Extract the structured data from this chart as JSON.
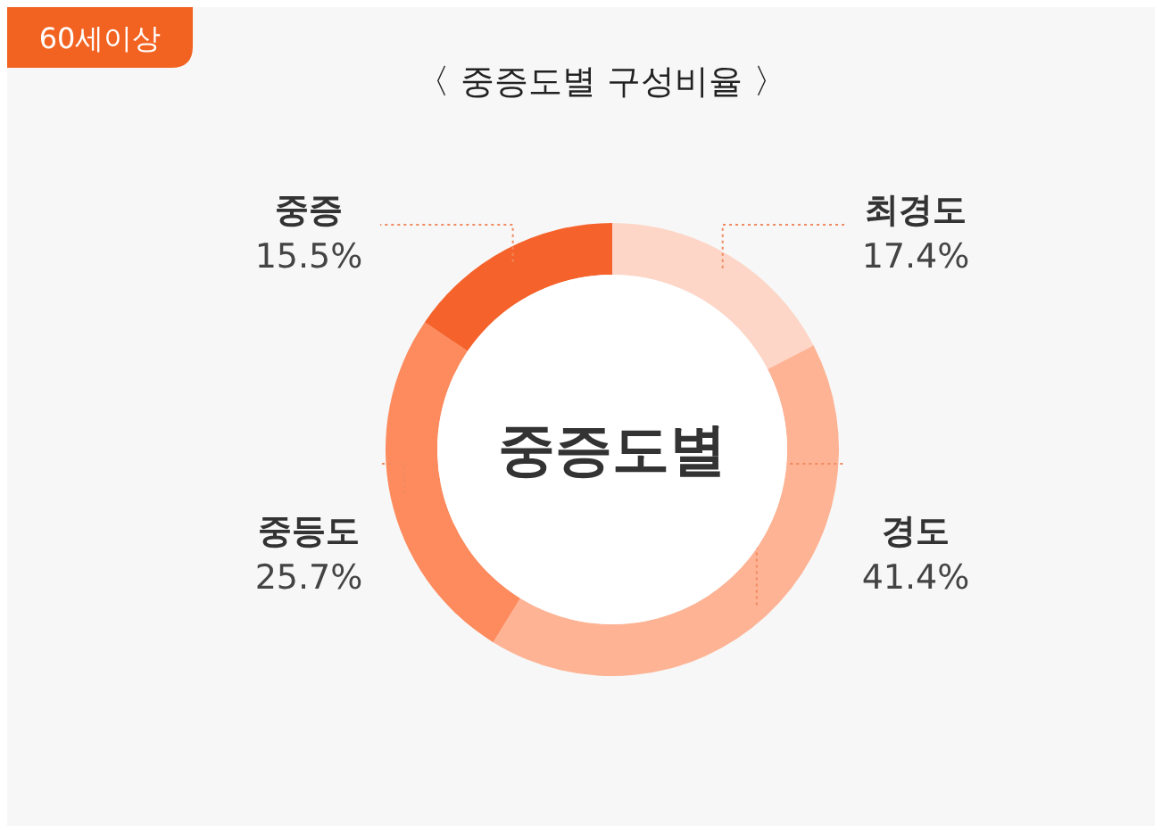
{
  "chart_data": {
    "type": "donut",
    "title": "〈 중증도별 구성비율 〉",
    "subtitle": "중증도별",
    "annotations": [
      "60세이상"
    ],
    "categories": [
      "최경도",
      "경도",
      "중등도",
      "중증"
    ],
    "values": [
      17.4,
      41.4,
      25.7,
      15.5
    ],
    "colors": [
      "#fdd6c7",
      "#fdb394",
      "#fd8b5e",
      "#f5622b"
    ],
    "value_labels": [
      "17.4%",
      "41.4%",
      "25.7%",
      "15.5%"
    ]
  }
}
